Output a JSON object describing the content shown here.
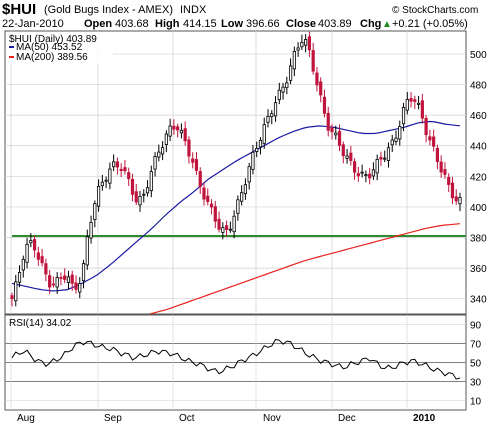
{
  "header": {
    "symbol": "$HUI",
    "name": "(Gold Bugs Index - AMEX)",
    "exchange": "INDX",
    "watermark": "© StockCharts.com",
    "date": "22-Jan-2010",
    "open_label": "Open",
    "open": "403.68",
    "high_label": "High",
    "high": "414.15",
    "low_label": "Low",
    "low": "396.66",
    "close_label": "Close",
    "close": "403.89",
    "chg_label": "Chg",
    "chg": "+0.21 (+0.05%)",
    "chg_arrow": "▲"
  },
  "legend": {
    "price": "$HUI (Daily) 403.89",
    "ma50": "MA(50) 453.52",
    "ma200": "MA(200) 389.56"
  },
  "rsi_panel": {
    "label": "RSI(14) 34.02"
  },
  "colors": {
    "up": "#000000",
    "down": "#c0143c",
    "ma50": "#1a1aa6",
    "ma200": "#e8231e",
    "support": "#2e8b2e",
    "grid": "#d0d0d0",
    "rsi": "#000000"
  },
  "chart_data": [
    {
      "type": "candlestick",
      "title": "$HUI (Gold Bugs Index - AMEX) INDX",
      "x_labels": [
        "Aug",
        "Sep",
        "Oct",
        "Nov",
        "Dec",
        "2010"
      ],
      "ylim": [
        330,
        515
      ],
      "y_ticks": [
        340,
        360,
        380,
        400,
        420,
        440,
        460,
        480,
        500
      ],
      "grid": true,
      "support_level": 381,
      "series": [
        {
          "name": "$HUI (Daily)",
          "close_path": [
            340,
            350,
            366,
            375,
            376,
            368,
            358,
            350,
            348,
            352,
            355,
            348,
            350,
            360,
            385,
            400,
            410,
            418,
            425,
            430,
            428,
            420,
            410,
            400,
            405,
            418,
            430,
            440,
            445,
            450,
            452,
            446,
            440,
            432,
            420,
            410,
            400,
            392,
            385,
            382,
            390,
            400,
            410,
            420,
            430,
            440,
            450,
            460,
            470,
            475,
            480,
            490,
            500,
            510,
            508,
            495,
            480,
            462,
            450,
            445,
            440,
            435,
            430,
            425,
            420,
            418,
            422,
            428,
            435,
            440,
            445,
            455,
            465,
            470,
            468,
            460,
            450,
            440,
            430,
            420,
            410,
            405,
            404
          ]
        },
        {
          "name": "MA(50)",
          "values_path": [
            350,
            348,
            346,
            345,
            346,
            350,
            355,
            362,
            370,
            378,
            386,
            395,
            403,
            410,
            418,
            424,
            430,
            435,
            440,
            445,
            449,
            452,
            453,
            452,
            450,
            448,
            448,
            450,
            452,
            455,
            456,
            454,
            453
          ]
        },
        {
          "name": "MA(200)",
          "values_path": [
            330,
            333,
            337,
            341,
            345,
            349,
            353,
            357,
            361,
            365,
            368,
            371,
            374,
            377,
            380,
            383,
            386,
            388,
            389
          ]
        }
      ]
    },
    {
      "type": "line",
      "title": "RSI(14) 34.02",
      "x_labels": [
        "Aug",
        "Sep",
        "Oct",
        "Nov",
        "Dec",
        "2010"
      ],
      "ylim": [
        0,
        100
      ],
      "y_ticks": [
        10,
        30,
        50,
        70,
        90
      ],
      "reference_lines": [
        30,
        50,
        70
      ],
      "series": [
        {
          "name": "RSI(14)",
          "values": [
            55,
            60,
            62,
            58,
            52,
            50,
            48,
            52,
            55,
            60,
            66,
            70,
            72,
            70,
            68,
            66,
            65,
            63,
            60,
            58,
            55,
            56,
            58,
            60,
            62,
            61,
            60,
            58,
            55,
            52,
            50,
            48,
            45,
            42,
            40,
            42,
            45,
            48,
            52,
            55,
            58,
            62,
            66,
            70,
            73,
            72,
            70,
            66,
            62,
            58,
            55,
            52,
            50,
            48,
            46,
            45,
            48,
            50,
            52,
            55,
            50,
            46,
            44,
            45,
            48,
            50,
            52,
            50,
            48,
            45,
            42,
            40,
            38,
            36,
            34
          ]
        }
      ]
    }
  ]
}
